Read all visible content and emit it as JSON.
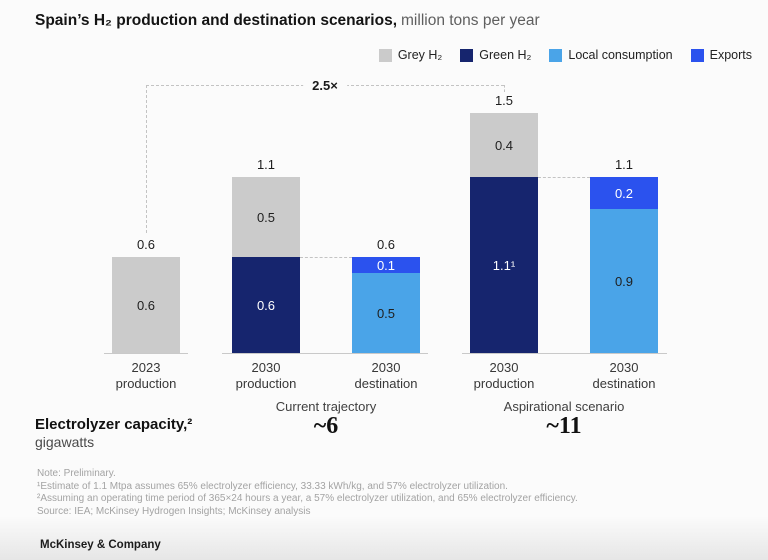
{
  "header": {
    "title_bold": "Spain’s H₂ production and destination scenarios,",
    "title_unit": "million tons per year"
  },
  "chart_data": {
    "type": "bar",
    "stacked": true,
    "title": "Spain’s H₂ production and destination scenarios",
    "unit": "million tons per year",
    "ylim": [
      0,
      1.6
    ],
    "grid": false,
    "legend_position": "top-right",
    "series": [
      {
        "name": "Grey H₂",
        "color": "#cbcbcb",
        "label_color": "#1f1f1f"
      },
      {
        "name": "Green H₂",
        "color": "#16256e",
        "label_color": "#ffffff"
      },
      {
        "name": "Local consumption",
        "color": "#4aa4e8",
        "label_color": "#1f1f1f"
      },
      {
        "name": "Exports",
        "color": "#2b52ee",
        "label_color": "#ffffff"
      }
    ],
    "bars": [
      {
        "category": "2023 production",
        "group": "",
        "total_label": "0.6",
        "segments": [
          {
            "series": "Grey H₂",
            "value": 0.6,
            "label": "0.6"
          }
        ]
      },
      {
        "category": "2030 production",
        "group": "Current trajectory",
        "total_label": "1.1",
        "segments": [
          {
            "series": "Green H₂",
            "value": 0.6,
            "label": "0.6"
          },
          {
            "series": "Grey H₂",
            "value": 0.5,
            "label": "0.5"
          }
        ]
      },
      {
        "category": "2030 destination",
        "group": "Current trajectory",
        "total_label": "0.6",
        "segments": [
          {
            "series": "Local consumption",
            "value": 0.5,
            "label": "0.5"
          },
          {
            "series": "Exports",
            "value": 0.1,
            "label": "0.1"
          }
        ]
      },
      {
        "category": "2030 production",
        "group": "Aspirational scenario",
        "total_label": "1.5",
        "segments": [
          {
            "series": "Green H₂",
            "value": 1.1,
            "label": "1.1¹"
          },
          {
            "series": "Grey H₂",
            "value": 0.4,
            "label": "0.4"
          }
        ]
      },
      {
        "category": "2030 destination",
        "group": "Aspirational scenario",
        "total_label": "1.1",
        "segments": [
          {
            "series": "Local consumption",
            "value": 0.9,
            "label": "0.9"
          },
          {
            "series": "Exports",
            "value": 0.2,
            "label": "0.2"
          }
        ]
      }
    ],
    "groups": [
      {
        "label": "Current trajectory",
        "electrolyzer_capacity_gw": "~6"
      },
      {
        "label": "Aspirational scenario",
        "electrolyzer_capacity_gw": "~11"
      }
    ],
    "annotation": {
      "multiplier": "2.5×",
      "from": "2023 production",
      "to": "2030 production (Aspirational scenario)"
    }
  },
  "capacity": {
    "title": "Electrolyzer capacity,²",
    "unit": "gigawatts"
  },
  "notes": [
    "Note: Preliminary.",
    "¹Estimate of 1.1 Mtpa assumes 65% electrolyzer efficiency, 33.33 kWh/kg, and 57% electrolyzer utilization.",
    "²Assuming an operating time period of 365×24 hours a year, a 57% electrolyzer utilization, and 65% electrolyzer efficiency.",
    "Source: IEA; McKinsey Hydrogen Insights; McKinsey analysis"
  ],
  "footer": {
    "brand": "McKinsey & Company"
  }
}
